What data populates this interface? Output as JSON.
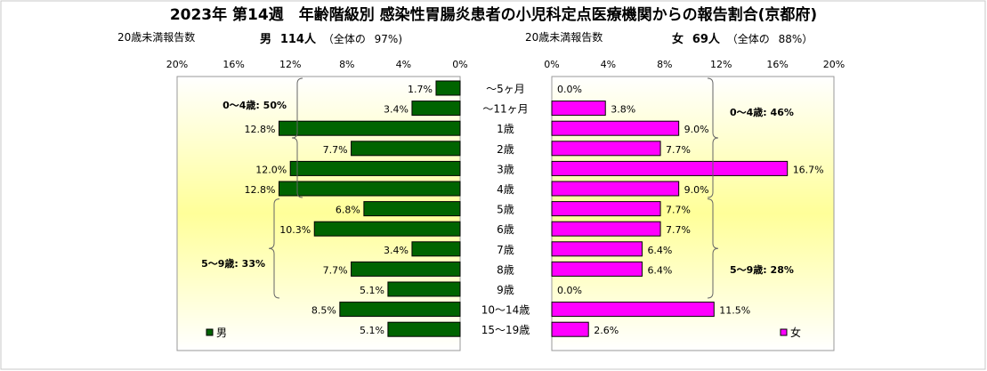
{
  "title": "2023年 第14週　年齢階級別 感染性胃腸炎患者の小児科定点医療機関からの報告割合(京都府)",
  "male_header": {
    "caption": "20歳未満報告数",
    "sex": "男",
    "count": "114人",
    "share_prefix": "（全体の",
    "share": "97%)"
  },
  "female_header": {
    "caption": "20歳未満報告数",
    "sex": "女",
    "count": "69人",
    "share_prefix": "（全体の",
    "share": "88%）"
  },
  "chart_data": {
    "type": "bar",
    "orientation": "horizontal-butterfly",
    "categories": [
      "～5ヶ月",
      "～11ヶ月",
      "1歳",
      "2歳",
      "3歳",
      "4歳",
      "5歳",
      "6歳",
      "7歳",
      "8歳",
      "9歳",
      "10～14歳",
      "15～19歳"
    ],
    "series": [
      {
        "name": "男",
        "color": "#006400",
        "values": [
          1.7,
          3.4,
          12.8,
          7.7,
          12.0,
          12.8,
          6.8,
          10.3,
          3.4,
          7.7,
          5.1,
          8.5,
          5.1
        ],
        "labels": [
          "1.7%",
          "3.4%",
          "12.8%",
          "7.7%",
          "12.0%",
          "12.8%",
          "6.8%",
          "10.3%",
          "3.4%",
          "7.7%",
          "5.1%",
          "8.5%",
          "5.1%"
        ]
      },
      {
        "name": "女",
        "color": "#ff00ff",
        "values": [
          0.0,
          3.8,
          9.0,
          7.7,
          16.7,
          9.0,
          7.7,
          7.7,
          6.4,
          6.4,
          0.0,
          11.5,
          2.6
        ],
        "labels": [
          "0.0%",
          "3.8%",
          "9.0%",
          "7.7%",
          "16.7%",
          "9.0%",
          "7.7%",
          "7.7%",
          "6.4%",
          "6.4%",
          "0.0%",
          "11.5%",
          "2.6%"
        ]
      }
    ],
    "xlim": [
      0,
      20
    ],
    "male_ticks": [
      "20%",
      "16%",
      "12%",
      "8%",
      "4%",
      "0%"
    ],
    "female_ticks": [
      "0%",
      "4%",
      "8%",
      "12%",
      "16%",
      "20%"
    ],
    "annotations": {
      "male_0_4": "0～4歳: 50%",
      "male_5_9": "5～9歳: 33%",
      "female_0_4": "0～4歳: 46%",
      "female_5_9": "5～9歳: 28%"
    },
    "legend": {
      "male": "男",
      "female": "女",
      "placement": "bottom-inside"
    },
    "grid": false
  }
}
